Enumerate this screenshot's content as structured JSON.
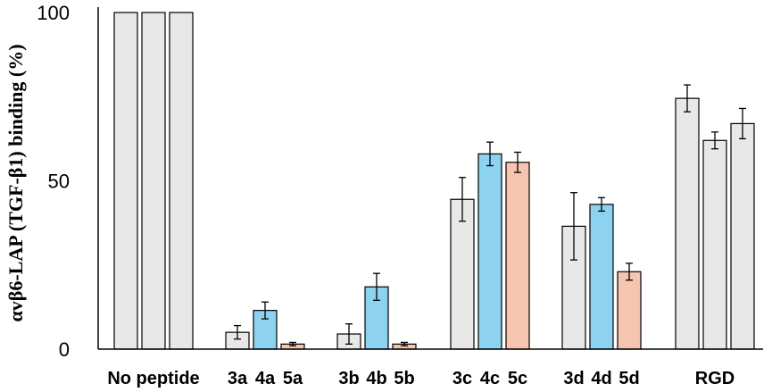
{
  "chart_data": {
    "type": "bar",
    "ylabel": "αvβ6-LAP (TGF-β1) binding (%)",
    "xlabel": "",
    "ylim": [
      0,
      100
    ],
    "yticks": [
      "0",
      "50",
      "100"
    ],
    "grid": false,
    "groups": [
      {
        "label": "No peptide",
        "bars": [
          {
            "value": 100,
            "error": 0,
            "color": "#e8e8e8"
          },
          {
            "value": 100,
            "error": 0,
            "color": "#e8e8e8"
          },
          {
            "value": 100,
            "error": 0,
            "color": "#e8e8e8"
          }
        ]
      },
      {
        "labels": [
          "3a",
          "4a",
          "5a"
        ],
        "bars": [
          {
            "value": 5,
            "error": 2,
            "color": "#e8e8e8"
          },
          {
            "value": 11.5,
            "error": 2.5,
            "color": "#8dd3f0"
          },
          {
            "value": 1.5,
            "error": 0.5,
            "color": "#f6c5b0"
          }
        ]
      },
      {
        "labels": [
          "3b",
          "4b",
          "5b"
        ],
        "bars": [
          {
            "value": 4.5,
            "error": 3,
            "color": "#e8e8e8"
          },
          {
            "value": 18.5,
            "error": 4,
            "color": "#8dd3f0"
          },
          {
            "value": 1.5,
            "error": 0.5,
            "color": "#f6c5b0"
          }
        ]
      },
      {
        "labels": [
          "3c",
          "4c",
          "5c"
        ],
        "bars": [
          {
            "value": 44.5,
            "error": 6.5,
            "color": "#e8e8e8"
          },
          {
            "value": 58,
            "error": 3.5,
            "color": "#8dd3f0"
          },
          {
            "value": 55.5,
            "error": 3,
            "color": "#f6c5b0"
          }
        ]
      },
      {
        "labels": [
          "3d",
          "4d",
          "5d"
        ],
        "bars": [
          {
            "value": 36.5,
            "error": 10,
            "color": "#e8e8e8"
          },
          {
            "value": 43,
            "error": 2,
            "color": "#8dd3f0"
          },
          {
            "value": 23,
            "error": 2.5,
            "color": "#f6c5b0"
          }
        ]
      },
      {
        "label": "RGD",
        "bars": [
          {
            "value": 74.5,
            "error": 4,
            "color": "#e8e8e8"
          },
          {
            "value": 62,
            "error": 2.5,
            "color": "#e8e8e8"
          },
          {
            "value": 67,
            "error": 4.5,
            "color": "#e8e8e8"
          }
        ]
      }
    ]
  }
}
